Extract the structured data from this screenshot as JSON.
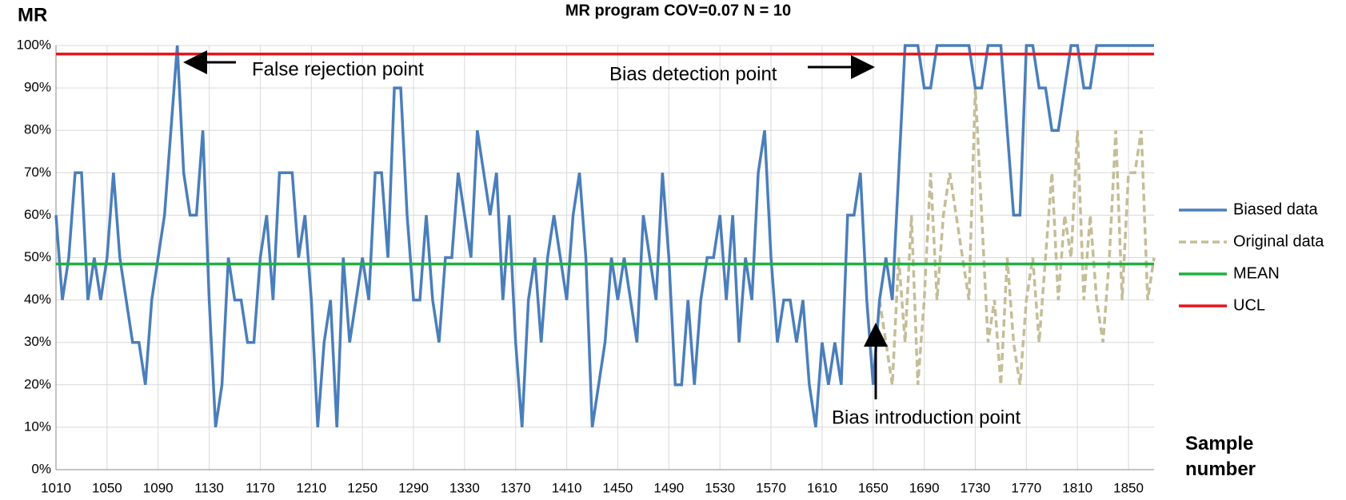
{
  "chart_data": {
    "type": "line",
    "title": "MR program COV=0.07 N = 10",
    "y_label": "MR",
    "x_label": "Sample number",
    "x": [
      1010,
      1015,
      1020,
      1025,
      1030,
      1035,
      1040,
      1045,
      1050,
      1055,
      1060,
      1065,
      1070,
      1075,
      1080,
      1085,
      1090,
      1095,
      1100,
      1105,
      1110,
      1115,
      1120,
      1125,
      1130,
      1135,
      1140,
      1145,
      1150,
      1155,
      1160,
      1165,
      1170,
      1175,
      1180,
      1185,
      1190,
      1195,
      1200,
      1205,
      1210,
      1215,
      1220,
      1225,
      1230,
      1235,
      1240,
      1245,
      1250,
      1255,
      1260,
      1265,
      1270,
      1275,
      1280,
      1285,
      1290,
      1295,
      1300,
      1305,
      1310,
      1315,
      1320,
      1325,
      1330,
      1335,
      1340,
      1345,
      1350,
      1355,
      1360,
      1365,
      1370,
      1375,
      1380,
      1385,
      1390,
      1395,
      1400,
      1405,
      1410,
      1415,
      1420,
      1425,
      1430,
      1435,
      1440,
      1445,
      1450,
      1455,
      1460,
      1465,
      1470,
      1475,
      1480,
      1485,
      1490,
      1495,
      1500,
      1505,
      1510,
      1515,
      1520,
      1525,
      1530,
      1535,
      1540,
      1545,
      1550,
      1555,
      1560,
      1565,
      1570,
      1575,
      1580,
      1585,
      1590,
      1595,
      1600,
      1605,
      1610,
      1615,
      1620,
      1625,
      1630,
      1635,
      1640,
      1645,
      1650,
      1655,
      1660,
      1665,
      1670,
      1675,
      1680,
      1685,
      1690,
      1695,
      1700,
      1705,
      1710,
      1715,
      1720,
      1725,
      1730,
      1735,
      1740,
      1745,
      1750,
      1755,
      1760,
      1765,
      1770,
      1775,
      1780,
      1785,
      1790,
      1795,
      1800,
      1805,
      1810,
      1815,
      1820,
      1825,
      1830,
      1835,
      1840,
      1845,
      1850,
      1855,
      1860,
      1865,
      1870
    ],
    "series": [
      {
        "name": "Biased data",
        "color": "#4a7ebb",
        "dashed": false,
        "values": [
          60,
          40,
          50,
          70,
          70,
          40,
          50,
          40,
          50,
          70,
          50,
          40,
          30,
          30,
          20,
          40,
          50,
          60,
          80,
          100,
          70,
          60,
          60,
          80,
          40,
          10,
          20,
          50,
          40,
          40,
          30,
          30,
          50,
          60,
          40,
          70,
          70,
          70,
          50,
          60,
          40,
          10,
          30,
          40,
          10,
          50,
          30,
          40,
          50,
          40,
          70,
          70,
          50,
          90,
          90,
          60,
          40,
          40,
          60,
          40,
          30,
          50,
          50,
          70,
          60,
          50,
          80,
          70,
          60,
          70,
          40,
          60,
          30,
          10,
          40,
          50,
          30,
          50,
          60,
          50,
          40,
          60,
          70,
          50,
          10,
          20,
          30,
          50,
          40,
          50,
          40,
          30,
          60,
          50,
          40,
          70,
          50,
          20,
          20,
          40,
          20,
          40,
          50,
          50,
          60,
          40,
          60,
          30,
          50,
          40,
          70,
          80,
          50,
          30,
          40,
          40,
          30,
          40,
          20,
          10,
          30,
          20,
          30,
          20,
          60,
          60,
          70,
          40,
          20,
          40,
          50,
          40,
          70,
          100,
          100,
          100,
          90,
          90,
          100,
          100,
          100,
          100,
          100,
          100,
          90,
          90,
          100,
          100,
          100,
          80,
          60,
          60,
          100,
          100,
          90,
          90,
          80,
          80,
          90,
          100,
          100,
          90,
          90,
          100,
          100,
          100,
          100,
          100,
          100,
          100,
          100,
          100,
          100
        ]
      },
      {
        "name": "Original data",
        "color": "#c4bd97",
        "dashed": true,
        "values": [
          null,
          null,
          null,
          null,
          null,
          null,
          null,
          null,
          null,
          null,
          null,
          null,
          null,
          null,
          null,
          null,
          null,
          null,
          null,
          null,
          null,
          null,
          null,
          null,
          null,
          null,
          null,
          null,
          null,
          null,
          null,
          null,
          null,
          null,
          null,
          null,
          null,
          null,
          null,
          null,
          null,
          null,
          null,
          null,
          null,
          null,
          null,
          null,
          null,
          null,
          null,
          null,
          null,
          null,
          null,
          null,
          null,
          null,
          null,
          null,
          null,
          null,
          null,
          null,
          null,
          null,
          null,
          null,
          null,
          null,
          null,
          null,
          null,
          null,
          null,
          null,
          null,
          null,
          null,
          null,
          null,
          null,
          null,
          null,
          null,
          null,
          null,
          null,
          null,
          null,
          null,
          null,
          null,
          null,
          null,
          null,
          null,
          null,
          null,
          null,
          null,
          null,
          null,
          null,
          null,
          null,
          null,
          null,
          null,
          null,
          null,
          null,
          null,
          null,
          null,
          null,
          null,
          null,
          null,
          null,
          null,
          null,
          null,
          null,
          null,
          null,
          null,
          null,
          null,
          40,
          30,
          20,
          50,
          30,
          60,
          20,
          40,
          70,
          40,
          60,
          70,
          60,
          50,
          40,
          90,
          60,
          30,
          40,
          20,
          50,
          30,
          20,
          40,
          50,
          30,
          50,
          70,
          40,
          60,
          50,
          80,
          40,
          60,
          40,
          30,
          50,
          80,
          40,
          70,
          70,
          80,
          40,
          50
        ]
      }
    ],
    "reference_lines": [
      {
        "name": "MEAN",
        "color": "#1fb040",
        "value": 48.5
      },
      {
        "name": "UCL",
        "color": "#e8141b",
        "value": 98
      }
    ],
    "xlim": [
      1010,
      1870
    ],
    "xticks": [
      1010,
      1050,
      1090,
      1130,
      1170,
      1210,
      1250,
      1290,
      1330,
      1370,
      1410,
      1450,
      1490,
      1530,
      1570,
      1610,
      1650,
      1690,
      1730,
      1770,
      1810,
      1850
    ],
    "ylim": [
      0,
      100
    ],
    "yticks": [
      {
        "value": 0,
        "label": "0%"
      },
      {
        "value": 10,
        "label": "10%"
      },
      {
        "value": 20,
        "label": "20%"
      },
      {
        "value": 30,
        "label": "30%"
      },
      {
        "value": 40,
        "label": "40%"
      },
      {
        "value": 50,
        "label": "50%"
      },
      {
        "value": 60,
        "label": "60%"
      },
      {
        "value": 70,
        "label": "70%"
      },
      {
        "value": 80,
        "label": "80%"
      },
      {
        "value": 90,
        "label": "90%"
      },
      {
        "value": 100,
        "label": "100%"
      }
    ],
    "grid": true,
    "legend": "right",
    "annotations": [
      "False rejection point",
      "Bias detection point",
      "Bias introduction point"
    ]
  }
}
